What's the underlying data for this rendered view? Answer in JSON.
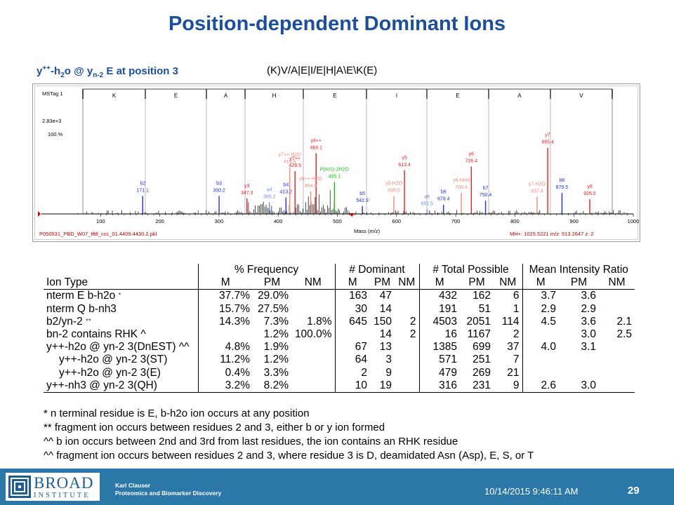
{
  "slide": {
    "title": "Position-dependent Dominant Ions",
    "subtitle": {
      "p1": "y",
      "sup1": "++",
      "p2": "-h",
      "sub1": "2",
      "p3": "o @ y",
      "sub2": "n-2",
      "p4": " E at position 3"
    },
    "sequence": "(K)V/A|E|I/E|H|A\\E\\K(E)"
  },
  "spectrum": {
    "header_label": "MSTag 1",
    "residues": [
      "K",
      "E",
      "A",
      "H",
      "E",
      "I",
      "E",
      "A",
      "V"
    ],
    "intensity_label": "2.83e+3",
    "percent_label": "100.%",
    "x_ticks": [
      "100",
      "200",
      "300",
      "400",
      "500",
      "600",
      "700",
      "800",
      "900",
      "1000"
    ],
    "x_axis_label": "Mass (m/z)",
    "file_label": "P050531_PBD_W07_tft8_ccc_01.4409.4430.2.pkl",
    "precursor_label": "MH+: 1025.5221   m/z: 513.2647   z: 2",
    "peak_labels": [
      {
        "ion": "b2",
        "mass": "171.1"
      },
      {
        "ion": "b3",
        "mass": "300.2"
      },
      {
        "ion": "y3",
        "mass": "347.3"
      },
      {
        "ion": "a4",
        "mass": "385.2"
      },
      {
        "ion": "b4",
        "mass": "413.2"
      },
      {
        "ion": "y7++",
        "mass": "428.5"
      },
      {
        "ion": "y8++",
        "mass": "464.1"
      },
      {
        "ion": "y7++-H2O",
        "mass": "419.5"
      },
      {
        "ion": "y8++-H2O",
        "mass": "454.9"
      },
      {
        "ion": "P(m/z)-2H2O",
        "mass": "495.1"
      },
      {
        "ion": "b5",
        "mass": "542.3"
      },
      {
        "ion": "y5-H2O",
        "mass": "595.5"
      },
      {
        "ion": "y5",
        "mass": "613.4"
      },
      {
        "ion": "a6",
        "mass": "651.5"
      },
      {
        "ion": "b6",
        "mass": "679.4"
      },
      {
        "ion": "y6-NH3",
        "mass": "709.4"
      },
      {
        "ion": "y6",
        "mass": "726.4"
      },
      {
        "ion": "b7",
        "mass": "750.4"
      },
      {
        "ion": "y7-H2O",
        "mass": "837.4"
      },
      {
        "ion": "y7",
        "mass": "855.4"
      },
      {
        "ion": "b8",
        "mass": "879.5"
      },
      {
        "ion": "y8",
        "mass": "926.5"
      }
    ],
    "colors": {
      "y_ion": "#ee1c1c",
      "y_loss": "#f08a7a",
      "b_ion": "#1c2fe0",
      "a_ion": "#6b8fd8",
      "precursor": "#11c011",
      "noise": "#000000",
      "grid": "#b8b8b8"
    }
  },
  "table": {
    "group_headers": [
      "% Frequency",
      "# Dominant",
      "# Total Possible",
      "Mean Intensity Ratio"
    ],
    "col_header": "Ion Type",
    "sub_headers": [
      "M",
      "PM",
      "NM",
      "M",
      "PM",
      "NM",
      "M",
      "PM",
      "NM",
      "M",
      "PM",
      "NM"
    ],
    "rows": [
      {
        "name": "nterm E b-h2o",
        "mark": "*",
        "indent": false,
        "vals": [
          "37.7%",
          "29.0%",
          "",
          "163",
          "47",
          "",
          "432",
          "162",
          "6",
          "3.7",
          "3.6",
          ""
        ]
      },
      {
        "name": "nterm Q b-nh3",
        "mark": "",
        "indent": false,
        "vals": [
          "15.7%",
          "27.5%",
          "",
          "30",
          "14",
          "",
          "191",
          "51",
          "1",
          "2.9",
          "2.9",
          ""
        ]
      },
      {
        "name": "b2/yn-2",
        "mark": "**",
        "indent": false,
        "vals": [
          "14.3%",
          "7.3%",
          "1.8%",
          "645",
          "150",
          "2",
          "4503",
          "2051",
          "114",
          "4.5",
          "3.6",
          "2.1"
        ]
      },
      {
        "name": "bn-2 contains RHK ^",
        "mark": "",
        "indent": false,
        "vals": [
          "",
          "1.2%",
          "100.0%",
          "",
          "14",
          "2",
          "16",
          "1167",
          "2",
          "",
          "3.0",
          "2.5"
        ]
      },
      {
        "name": "y++-h2o @ yn-2 3(DnEST) ^^",
        "mark": "",
        "indent": false,
        "vals": [
          "4.8%",
          "1.9%",
          "",
          "67",
          "13",
          "",
          "1385",
          "699",
          "37",
          "4.0",
          "3.1",
          ""
        ]
      },
      {
        "name": "y++-h2o @ yn-2 3(ST)",
        "mark": "",
        "indent": true,
        "vals": [
          "11.2%",
          "1.2%",
          "",
          "64",
          "3",
          "",
          "571",
          "251",
          "7",
          "",
          "",
          ""
        ]
      },
      {
        "name": "y++-h2o @ yn-2 3(E)",
        "mark": "",
        "indent": true,
        "vals": [
          "0.4%",
          "3.3%",
          "",
          "2",
          "9",
          "",
          "479",
          "269",
          "21",
          "",
          "",
          ""
        ]
      },
      {
        "name": "y++-nh3 @ yn-2 3(QH)",
        "mark": "",
        "indent": false,
        "vals": [
          "3.2%",
          "8.2%",
          "",
          "10",
          "19",
          "",
          "316",
          "231",
          "9",
          "2.6",
          "3.0",
          ""
        ]
      }
    ]
  },
  "notes": [
    "* n terminal residue is E, b-h2o ion occurs at any position",
    "** fragment ion occurs between residues 2 and 3, either b or y ion formed",
    "^^ b ion occurs between 2nd and 3rd from last residues, the ion contains an RHK residue",
    "^^ fragment ion occurs between residues 2 and 3, where residue 3 is D, deamidated Asn (Asp), E, S, or T"
  ],
  "footer": {
    "logo_top": "BROAD",
    "logo_bottom": "INSTITUTE",
    "presenter_name": "Karl Clauser",
    "presenter_group": "Proteomics and Biomarker Discovery",
    "datetime": "10/14/2015 9:46:11 AM",
    "page_number": "29"
  }
}
